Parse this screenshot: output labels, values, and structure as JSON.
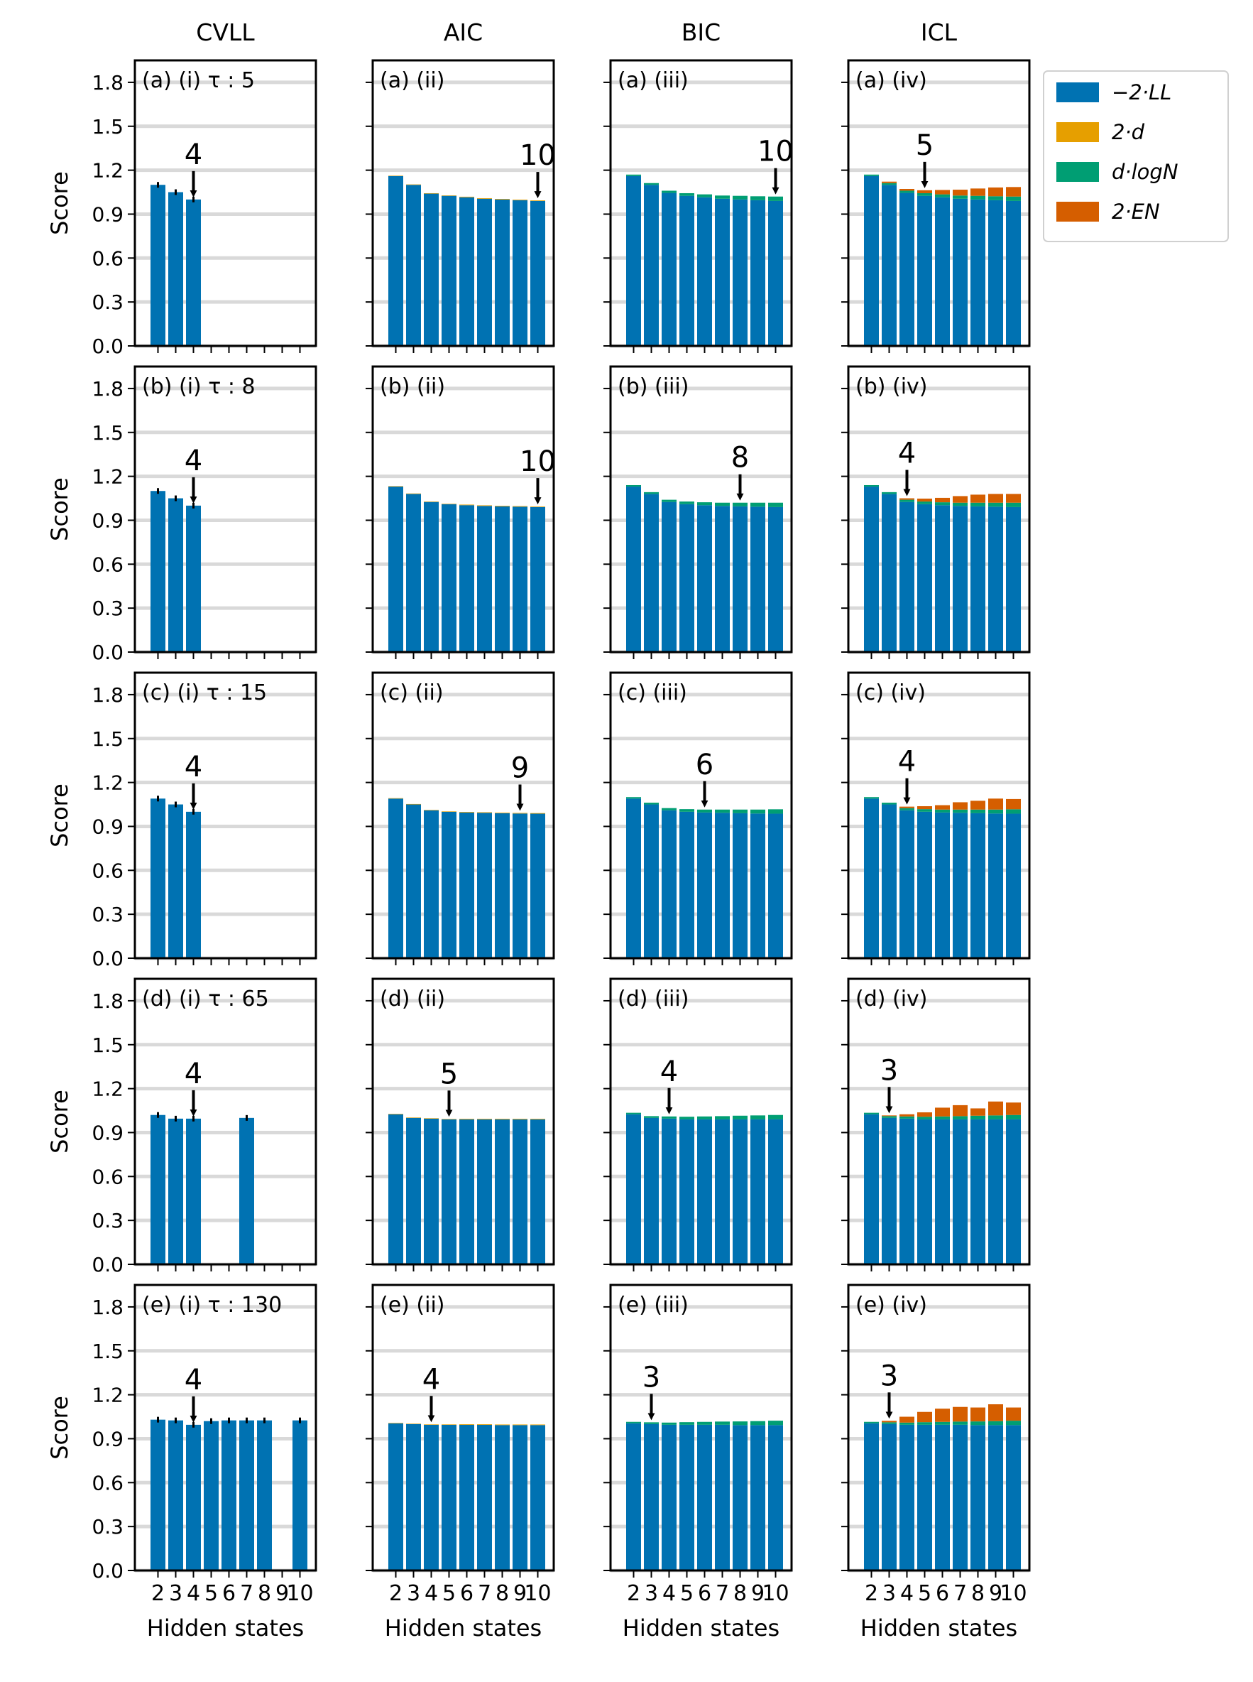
{
  "columns": [
    {
      "title": "CVLL",
      "xlabel": "Hidden states"
    },
    {
      "title": "AIC",
      "xlabel": "Hidden states"
    },
    {
      "title": "BIC",
      "xlabel": "Hidden states"
    },
    {
      "title": "ICL",
      "xlabel": "Hidden states"
    }
  ],
  "ylabel": "Score",
  "legend": [
    {
      "label": "−2·LL",
      "color": "#0072B2"
    },
    {
      "label": "2·d",
      "color": "#E69F00"
    },
    {
      "label": "d·logN",
      "color": "#009E73"
    },
    {
      "label": "2·EN",
      "color": "#D55E00"
    }
  ],
  "chart_data": {
    "type": "bar",
    "stacked": true,
    "x": [
      2,
      3,
      4,
      5,
      6,
      7,
      8,
      9,
      10
    ],
    "ylim": [
      0,
      1.95
    ],
    "yticks": [
      0.0,
      0.3,
      0.6,
      0.9,
      1.2,
      1.5,
      1.8
    ],
    "grid": true,
    "legend_position": "outside top-right",
    "rows": [
      {
        "tau_label": "τ : 5",
        "panels": [
          {
            "label": "(a) (i) τ : 5",
            "best": 4,
            "bars": [
              [
                2,
                1.1
              ],
              [
                3,
                1.05
              ],
              [
                4,
                1.0
              ]
            ]
          },
          {
            "label": "(a) (ii)",
            "best": 10,
            "bars": [
              [
                2,
                1.16,
                0.003
              ],
              [
                3,
                1.1,
                0.003
              ],
              [
                4,
                1.04,
                0.003
              ],
              [
                5,
                1.025,
                0.003
              ],
              [
                6,
                1.015,
                0.004
              ],
              [
                7,
                1.005,
                0.004
              ],
              [
                8,
                1.0,
                0.004
              ],
              [
                9,
                0.995,
                0.004
              ],
              [
                10,
                0.99,
                0.004
              ]
            ]
          },
          {
            "label": "(a) (iii)",
            "best": 10,
            "bars": [
              [
                2,
                1.16,
                0.01
              ],
              [
                3,
                1.1,
                0.012
              ],
              [
                4,
                1.045,
                0.015
              ],
              [
                5,
                1.025,
                0.018
              ],
              [
                6,
                1.015,
                0.02
              ],
              [
                7,
                1.005,
                0.022
              ],
              [
                8,
                1.0,
                0.025
              ],
              [
                9,
                0.995,
                0.027
              ],
              [
                10,
                0.99,
                0.03
              ]
            ]
          },
          {
            "label": "(a) (iv)",
            "best": 5,
            "bars": [
              [
                2,
                1.16,
                0.01,
                0.0
              ],
              [
                3,
                1.1,
                0.012,
                0.01
              ],
              [
                4,
                1.045,
                0.015,
                0.012
              ],
              [
                5,
                1.025,
                0.018,
                0.02
              ],
              [
                6,
                1.015,
                0.02,
                0.03
              ],
              [
                7,
                1.005,
                0.022,
                0.04
              ],
              [
                8,
                1.0,
                0.025,
                0.05
              ],
              [
                9,
                0.995,
                0.027,
                0.06
              ],
              [
                10,
                0.99,
                0.03,
                0.065
              ]
            ]
          }
        ]
      },
      {
        "tau_label": "τ : 8",
        "panels": [
          {
            "label": "(b) (i) τ : 8",
            "best": 4,
            "bars": [
              [
                2,
                1.1
              ],
              [
                3,
                1.05
              ],
              [
                4,
                1.0
              ]
            ]
          },
          {
            "label": "(b) (ii)",
            "best": 10,
            "bars": [
              [
                2,
                1.13,
                0.003
              ],
              [
                3,
                1.08,
                0.003
              ],
              [
                4,
                1.025,
                0.003
              ],
              [
                5,
                1.01,
                0.003
              ],
              [
                6,
                1.003,
                0.004
              ],
              [
                7,
                0.998,
                0.004
              ],
              [
                8,
                0.995,
                0.004
              ],
              [
                9,
                0.993,
                0.004
              ],
              [
                10,
                0.99,
                0.004
              ]
            ]
          },
          {
            "label": "(b) (iii)",
            "best": 8,
            "bars": [
              [
                2,
                1.13,
                0.01
              ],
              [
                3,
                1.08,
                0.012
              ],
              [
                4,
                1.025,
                0.015
              ],
              [
                5,
                1.01,
                0.018
              ],
              [
                6,
                1.003,
                0.02
              ],
              [
                7,
                0.998,
                0.022
              ],
              [
                8,
                0.995,
                0.025
              ],
              [
                9,
                0.993,
                0.027
              ],
              [
                10,
                0.99,
                0.03
              ]
            ]
          },
          {
            "label": "(b) (iv)",
            "best": 4,
            "bars": [
              [
                2,
                1.13,
                0.01,
                0.0
              ],
              [
                3,
                1.08,
                0.012,
                0.0
              ],
              [
                4,
                1.025,
                0.015,
                0.01
              ],
              [
                5,
                1.01,
                0.018,
                0.02
              ],
              [
                6,
                1.003,
                0.02,
                0.03
              ],
              [
                7,
                0.998,
                0.022,
                0.045
              ],
              [
                8,
                0.995,
                0.025,
                0.055
              ],
              [
                9,
                0.993,
                0.027,
                0.06
              ],
              [
                10,
                0.99,
                0.03,
                0.06
              ]
            ]
          }
        ]
      },
      {
        "tau_label": "τ : 15",
        "panels": [
          {
            "label": "(c) (i) τ : 15",
            "best": 4,
            "bars": [
              [
                2,
                1.09
              ],
              [
                3,
                1.05
              ],
              [
                4,
                1.0
              ]
            ]
          },
          {
            "label": "(c) (ii)",
            "best": 9,
            "bars": [
              [
                2,
                1.09,
                0.003
              ],
              [
                3,
                1.05,
                0.003
              ],
              [
                4,
                1.01,
                0.003
              ],
              [
                5,
                1.0,
                0.003
              ],
              [
                6,
                0.995,
                0.004
              ],
              [
                7,
                0.993,
                0.004
              ],
              [
                8,
                0.99,
                0.004
              ],
              [
                9,
                0.988,
                0.004
              ],
              [
                10,
                0.987,
                0.004
              ]
            ]
          },
          {
            "label": "(c) (iii)",
            "best": 6,
            "bars": [
              [
                2,
                1.09,
                0.01
              ],
              [
                3,
                1.05,
                0.012
              ],
              [
                4,
                1.01,
                0.015
              ],
              [
                5,
                1.0,
                0.018
              ],
              [
                6,
                0.995,
                0.02
              ],
              [
                7,
                0.993,
                0.022
              ],
              [
                8,
                0.99,
                0.025
              ],
              [
                9,
                0.988,
                0.027
              ],
              [
                10,
                0.987,
                0.03
              ]
            ]
          },
          {
            "label": "(c) (iv)",
            "best": 4,
            "bars": [
              [
                2,
                1.09,
                0.01,
                0.0
              ],
              [
                3,
                1.05,
                0.012,
                0.0
              ],
              [
                4,
                1.01,
                0.015,
                0.01
              ],
              [
                5,
                1.0,
                0.018,
                0.02
              ],
              [
                6,
                0.995,
                0.02,
                0.03
              ],
              [
                7,
                0.993,
                0.022,
                0.05
              ],
              [
                8,
                0.99,
                0.025,
                0.06
              ],
              [
                9,
                0.988,
                0.027,
                0.075
              ],
              [
                10,
                0.987,
                0.03,
                0.07
              ]
            ]
          }
        ]
      },
      {
        "tau_label": "τ : 65",
        "panels": [
          {
            "label": "(d) (i) τ : 65",
            "best": 4,
            "bars": [
              [
                2,
                1.02
              ],
              [
                3,
                0.995
              ],
              [
                4,
                0.995
              ],
              [
                7,
                1.0
              ]
            ]
          },
          {
            "label": "(d) (ii)",
            "best": 5,
            "bars": [
              [
                2,
                1.025,
                0.003
              ],
              [
                3,
                1.0,
                0.003
              ],
              [
                4,
                0.995,
                0.003
              ],
              [
                5,
                0.99,
                0.003
              ],
              [
                6,
                0.99,
                0.004
              ],
              [
                7,
                0.99,
                0.004
              ],
              [
                8,
                0.99,
                0.004
              ],
              [
                9,
                0.99,
                0.004
              ],
              [
                10,
                0.99,
                0.004
              ]
            ]
          },
          {
            "label": "(d) (iii)",
            "best": 4,
            "bars": [
              [
                2,
                1.025,
                0.01
              ],
              [
                3,
                1.0,
                0.012
              ],
              [
                4,
                0.995,
                0.015
              ],
              [
                5,
                0.99,
                0.018
              ],
              [
                6,
                0.99,
                0.02
              ],
              [
                7,
                0.99,
                0.022
              ],
              [
                8,
                0.99,
                0.025
              ],
              [
                9,
                0.99,
                0.027
              ],
              [
                10,
                0.99,
                0.03
              ]
            ]
          },
          {
            "label": "(d) (iv)",
            "best": 3,
            "bars": [
              [
                2,
                1.025,
                0.01,
                0.0
              ],
              [
                3,
                1.0,
                0.012,
                0.005
              ],
              [
                4,
                0.995,
                0.015,
                0.015
              ],
              [
                5,
                0.99,
                0.018,
                0.03
              ],
              [
                6,
                0.99,
                0.02,
                0.06
              ],
              [
                7,
                0.99,
                0.022,
                0.075
              ],
              [
                8,
                0.99,
                0.025,
                0.05
              ],
              [
                9,
                0.99,
                0.027,
                0.095
              ],
              [
                10,
                0.99,
                0.03,
                0.085
              ]
            ]
          }
        ]
      },
      {
        "tau_label": "τ : 130",
        "panels": [
          {
            "label": "(e) (i) τ : 130",
            "best": 4,
            "bars": [
              [
                2,
                1.03
              ],
              [
                3,
                1.025
              ],
              [
                4,
                0.995
              ],
              [
                5,
                1.02
              ],
              [
                6,
                1.025
              ],
              [
                7,
                1.025
              ],
              [
                8,
                1.025
              ],
              [
                10,
                1.025
              ]
            ]
          },
          {
            "label": "(e) (ii)",
            "best": 4,
            "bars": [
              [
                2,
                1.005,
                0.003
              ],
              [
                3,
                1.0,
                0.003
              ],
              [
                4,
                0.995,
                0.003
              ],
              [
                5,
                0.995,
                0.003
              ],
              [
                6,
                0.995,
                0.004
              ],
              [
                7,
                0.995,
                0.004
              ],
              [
                8,
                0.993,
                0.004
              ],
              [
                9,
                0.993,
                0.004
              ],
              [
                10,
                0.993,
                0.004
              ]
            ]
          },
          {
            "label": "(e) (iii)",
            "best": 3,
            "bars": [
              [
                2,
                1.005,
                0.01
              ],
              [
                3,
                1.0,
                0.012
              ],
              [
                4,
                0.995,
                0.015
              ],
              [
                5,
                0.995,
                0.018
              ],
              [
                6,
                0.995,
                0.02
              ],
              [
                7,
                0.995,
                0.022
              ],
              [
                8,
                0.993,
                0.025
              ],
              [
                9,
                0.993,
                0.027
              ],
              [
                10,
                0.993,
                0.03
              ]
            ]
          },
          {
            "label": "(e) (iv)",
            "best": 3,
            "bars": [
              [
                2,
                1.005,
                0.01,
                0.0
              ],
              [
                3,
                1.0,
                0.012,
                0.01
              ],
              [
                4,
                0.995,
                0.015,
                0.04
              ],
              [
                5,
                0.995,
                0.018,
                0.07
              ],
              [
                6,
                0.995,
                0.02,
                0.09
              ],
              [
                7,
                0.995,
                0.022,
                0.1
              ],
              [
                8,
                0.993,
                0.025,
                0.095
              ],
              [
                9,
                0.993,
                0.027,
                0.115
              ],
              [
                10,
                0.993,
                0.03,
                0.09
              ]
            ]
          }
        ]
      }
    ]
  }
}
